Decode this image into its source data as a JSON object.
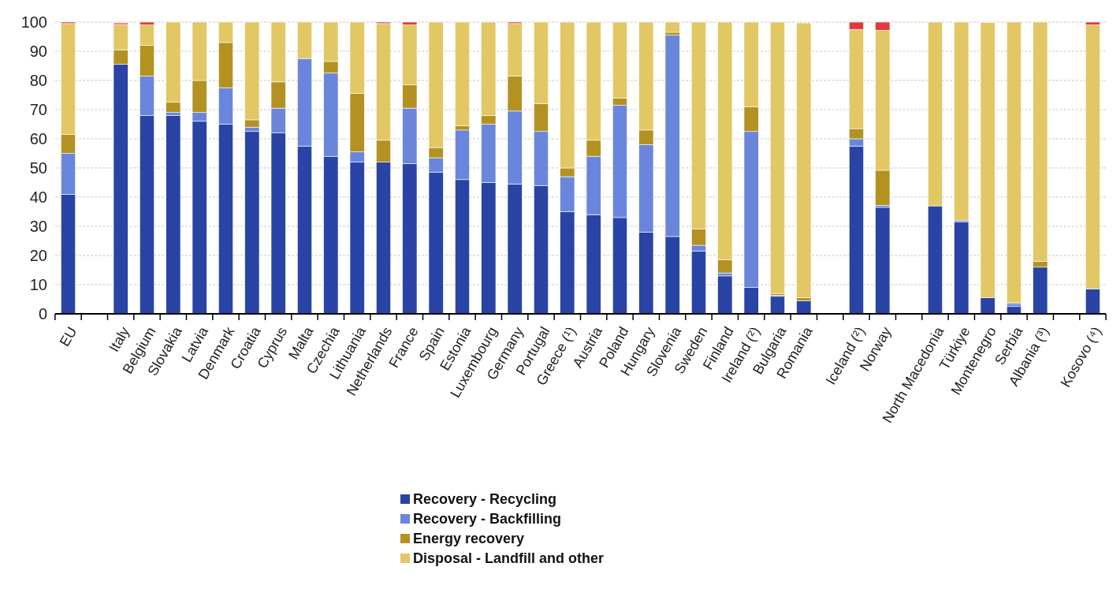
{
  "chart_data": {
    "type": "bar",
    "stacked": true,
    "categories": [
      "EU",
      null,
      "Italy",
      "Belgium",
      "Slovakia",
      "Latvia",
      "Denmark",
      "Croatia",
      "Cyprus",
      "Malta",
      "Czechia",
      "Lithuania",
      "Netherlands",
      "France",
      "Spain",
      "Estonia",
      "Luxembourg",
      "Germany",
      "Portugal",
      "Greece (¹)",
      "Austria",
      "Poland",
      "Hungary",
      "Slovenia",
      "Sweden",
      "Finland",
      "Ireland (²)",
      "Bulgaria",
      "Romania",
      null,
      "Iceland (²)",
      "Norway",
      null,
      "North Macedonia",
      "Türkiye",
      "Montenegro",
      "Serbia",
      "Albania (³)",
      null,
      "Kosovo (⁴)"
    ],
    "series": [
      {
        "name": "Recovery - Recycling",
        "color": "#2944a5",
        "values": [
          41,
          null,
          85.5,
          68,
          68,
          66,
          65,
          62.5,
          62,
          57.5,
          54,
          52,
          52,
          51.5,
          48.5,
          46,
          45,
          44.5,
          44,
          35,
          34,
          33,
          28,
          26.5,
          21.5,
          13,
          9,
          6,
          4.5,
          null,
          57.5,
          36.5,
          null,
          37,
          31.5,
          5.5,
          2.5,
          16,
          null,
          8.5
        ]
      },
      {
        "name": "Recovery - Backfilling",
        "color": "#6a86dc",
        "values": [
          14,
          null,
          null,
          13.5,
          1,
          3,
          12.5,
          1.5,
          8.5,
          30,
          28.5,
          3.5,
          0,
          19,
          5,
          17,
          20,
          25,
          18.5,
          12,
          20,
          38.5,
          30,
          69,
          2,
          1,
          53.5,
          0.3,
          null,
          null,
          2.5,
          0.7,
          null,
          0,
          0.5,
          0,
          1,
          0,
          null,
          0
        ]
      },
      {
        "name": "Energy recovery",
        "color": "#b39222",
        "values": [
          6.5,
          null,
          5,
          10.5,
          3.5,
          11,
          15.5,
          2.5,
          9,
          0,
          4,
          20,
          7.5,
          8,
          3.5,
          1.5,
          3,
          12,
          9.5,
          3,
          5.5,
          2.5,
          5,
          1,
          5.5,
          4.5,
          8.5,
          0.7,
          1,
          null,
          3.5,
          12,
          null,
          0,
          0,
          null,
          0.5,
          2,
          null,
          0
        ]
      },
      {
        "name": "Disposal - Landfill and other",
        "color": "#e2c765",
        "values": [
          38,
          null,
          8.7,
          7,
          27.5,
          20,
          7,
          33.5,
          20.5,
          12.5,
          13.5,
          24.5,
          40,
          20.5,
          43,
          35.5,
          32,
          18,
          28,
          50,
          40.5,
          26,
          37,
          3.5,
          71,
          81.5,
          29,
          93,
          94.2,
          null,
          34,
          48,
          null,
          63,
          68,
          94.3,
          96,
          82,
          null,
          90.5
        ]
      },
      {
        "color": "#e03a3e",
        "values": [
          0.5,
          null,
          0.5,
          1,
          0,
          0,
          0,
          0,
          0,
          0,
          0,
          0,
          0.5,
          1,
          0,
          0,
          0,
          0.5,
          0,
          0,
          0,
          0,
          0,
          0,
          0,
          0,
          0,
          0,
          0,
          null,
          2.5,
          2.8,
          null,
          0,
          0,
          0,
          0,
          0,
          null,
          1
        ]
      }
    ],
    "ylim": [
      0,
      100
    ],
    "yticks": [
      0,
      10,
      20,
      30,
      40,
      50,
      60,
      70,
      80,
      90,
      100
    ],
    "grid": "y",
    "legend": "bottom"
  }
}
